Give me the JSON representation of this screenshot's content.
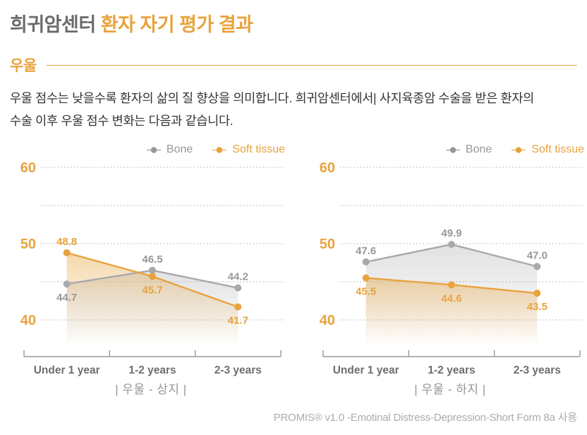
{
  "header": {
    "title_prefix": "희귀암센터",
    "title_main": "환자 자기 평가 결과"
  },
  "section": {
    "label": "우울"
  },
  "description": {
    "line1": "우울 점수는 낮을수록 환자의 삶의 질 향상을 의미합니다. 희귀암센터에서| 사지육종암 수술을 받은 환자의",
    "line2": "수술 이후 우울 점수 변화는 다음과 같습니다."
  },
  "legend": {
    "bone": "Bone",
    "soft_tissue": "Soft tissue"
  },
  "footer": {
    "source": "PROMIS® v1.0 -Emotinal Distress-Depression-Short Form 8a 사용"
  },
  "colors": {
    "gold": "#E8A33D",
    "bone_line": "#A7A9AC",
    "bone_text": "#97989B",
    "dark_gray": "#6D6E71",
    "caption_gray": "#939598",
    "grid_gray": "#C6C7C9",
    "axis_gray": "#96989B",
    "footer_gray": "#A9ABAE"
  },
  "chart_data": [
    {
      "type": "line",
      "title": "| 우울 - 상지 |",
      "categories": [
        "Under 1 year",
        "1-2 years",
        "2-3 years"
      ],
      "y_ticks": [
        60,
        50,
        40
      ],
      "grid_values": [
        60,
        55,
        50,
        45,
        40
      ],
      "ylim": [
        38,
        62
      ],
      "grid": true,
      "legend_position": "top-right",
      "series": [
        {
          "name": "Bone",
          "key": "bone",
          "color": "#A7A9AC",
          "label_color": "#97989B",
          "fill_opacity": 0.34,
          "values": [
            44.7,
            46.5,
            44.2
          ]
        },
        {
          "name": "Soft tissue",
          "key": "soft-tissue",
          "color": "#E8A33D",
          "label_color": "#E8A33D",
          "fill_opacity": 0.42,
          "values": [
            48.8,
            45.7,
            41.7
          ]
        }
      ]
    },
    {
      "type": "line",
      "title": "| 우울 - 하지 |",
      "categories": [
        "Under 1 year",
        "1-2 years",
        "2-3 years"
      ],
      "y_ticks": [
        60,
        50,
        40
      ],
      "grid_values": [
        60,
        55,
        50,
        45,
        40
      ],
      "ylim": [
        38,
        62
      ],
      "grid": true,
      "legend_position": "top-right",
      "series": [
        {
          "name": "Bone",
          "key": "bone",
          "color": "#A7A9AC",
          "label_color": "#97989B",
          "fill_opacity": 0.34,
          "values": [
            47.6,
            49.9,
            47.0
          ]
        },
        {
          "name": "Soft tissue",
          "key": "soft-tissue",
          "color": "#E8A33D",
          "label_color": "#E8A33D",
          "fill_opacity": 0.42,
          "values": [
            45.5,
            44.6,
            43.5
          ]
        }
      ]
    }
  ]
}
